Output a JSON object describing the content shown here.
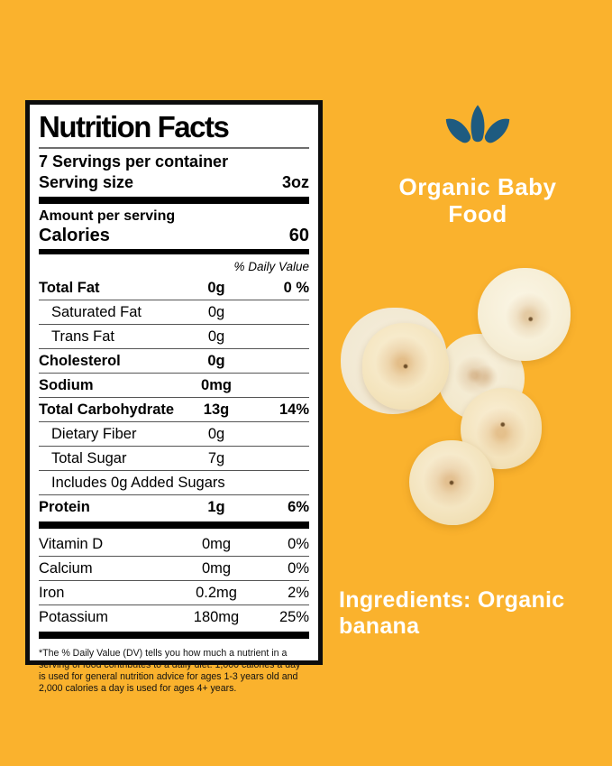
{
  "page": {
    "background_color": "#FAB22D"
  },
  "brand": {
    "logo_icon": "splash-droplets-icon",
    "logo_color": "#1E5B80",
    "name_line1": "Organic Baby",
    "name_line2": "Food"
  },
  "nutrition_label": {
    "title": "Nutrition Facts",
    "servings_per_container": "7 Servings per container",
    "serving_size": {
      "label": "Serving size",
      "value": "3oz"
    },
    "amount_per_serving": "Amount per serving",
    "calories": {
      "label": "Calories",
      "value": "60"
    },
    "daily_value_header": "% Daily Value",
    "main_rows": [
      {
        "name": "Total Fat",
        "amount": "0g",
        "dv": "0 %",
        "bold": true
      },
      {
        "name": "Saturated Fat",
        "amount": "0g",
        "dv": "",
        "indent": true
      },
      {
        "name": "Trans Fat",
        "amount": "0g",
        "dv": "",
        "indent": true
      },
      {
        "name": "Cholesterol",
        "amount": "0g",
        "dv": "",
        "bold": true
      },
      {
        "name": "Sodium",
        "amount": "0mg",
        "dv": "",
        "bold": true
      },
      {
        "name": "Total Carbohydrate",
        "amount": "13g",
        "dv": "14%",
        "bold": true
      },
      {
        "name": "Dietary Fiber",
        "amount": "0g",
        "dv": "",
        "indent": true
      },
      {
        "name": "Total Sugar",
        "amount": "7g",
        "dv": "",
        "indent": true
      },
      {
        "name": "Includes 0g Added Sugars",
        "amount": "",
        "dv": "",
        "indent": true,
        "full": true
      },
      {
        "name": "Protein",
        "amount": "1g",
        "dv": "6%",
        "bold": true
      }
    ],
    "micro_rows": [
      {
        "name": "Vitamin D",
        "amount": "0mg",
        "dv": "0%"
      },
      {
        "name": "Calcium",
        "amount": "0mg",
        "dv": "0%"
      },
      {
        "name": "Iron",
        "amount": "0.2mg",
        "dv": "2%"
      },
      {
        "name": "Potassium",
        "amount": "180mg",
        "dv": "25%"
      }
    ],
    "footnote": "*The % Daily Value (DV) tells you how much a nutrient in a serving of food contributes to a daily diet. 1,000 calories a day is used for general nutrition advice for ages 1-3 years old and 2,000 calories a day is used for ages 4+ years."
  },
  "ingredients": {
    "text": "Ingredients: Organic banana"
  },
  "images": {
    "banana_slices_image": "banana-slices-photo"
  }
}
